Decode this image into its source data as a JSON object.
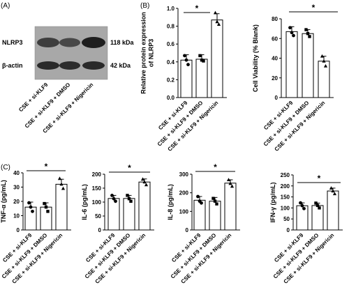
{
  "panel_labels": {
    "a": "(A)",
    "b": "(B)",
    "c": "(C)"
  },
  "blot": {
    "bands": [
      {
        "protein": "NLRP3",
        "size": "118 kDa"
      },
      {
        "protein": "β-actin",
        "size": "42 kDa"
      }
    ],
    "lanes": [
      "CSE + si-KLF9",
      "CSE + si-KLF9 + DMSO",
      "CSE + si-KLF9 + Nigericin"
    ]
  },
  "chart_data": [
    {
      "type": "bar",
      "panel": "B",
      "categories": [
        "CSE + si-KLF9",
        "CSE + si-KLF9 + DMSO",
        "CSE + si-KLF9 + Nigericin"
      ],
      "values": [
        0.42,
        0.43,
        0.87
      ],
      "errors": [
        0.06,
        0.05,
        0.07
      ],
      "points": [
        [
          0.47,
          0.37,
          0.42
        ],
        [
          0.47,
          0.41,
          0.42
        ],
        [
          0.95,
          0.82,
          0.85
        ]
      ],
      "markers": [
        "circle",
        "square",
        "triangle"
      ],
      "ylabel": "Relative protein expression\nof NLRP3",
      "ylim": [
        0,
        1.0
      ],
      "yticks": [
        "0.0",
        "0.2",
        "0.4",
        "0.6",
        "0.8",
        "1.0"
      ],
      "significance": "*"
    },
    {
      "type": "bar",
      "panel": "B",
      "categories": [
        "CSE + si-KLF9",
        "CSE + si-KLF9 + DMSO",
        "CSE + si-KLF9 + Nigericin"
      ],
      "values": [
        67,
        65,
        37
      ],
      "errors": [
        5,
        4,
        5
      ],
      "points": [
        [
          71,
          63,
          66
        ],
        [
          69,
          62,
          65
        ],
        [
          42,
          32,
          37
        ]
      ],
      "markers": [
        "circle",
        "square",
        "triangle"
      ],
      "ylabel": "Cell Viability (% Blank)",
      "ylim": [
        0,
        80
      ],
      "yticks": [
        "0",
        "20",
        "40",
        "60",
        "80"
      ],
      "significance": "*"
    },
    {
      "type": "bar",
      "panel": "C",
      "categories": [
        "CSE + si-KLF9",
        "CSE + si-KLF9 + DMSO",
        "CSE + si-KLF9 + Nigericin"
      ],
      "values": [
        16,
        16,
        32
      ],
      "errors": [
        3.5,
        3,
        3.5
      ],
      "points": [
        [
          19,
          13,
          16
        ],
        [
          18.5,
          13,
          16
        ],
        [
          36,
          29,
          32
        ]
      ],
      "markers": [
        "circle",
        "square",
        "triangle"
      ],
      "ylabel": "TNF-α (pg/mL)",
      "ylim": [
        0,
        40
      ],
      "yticks": [
        "0",
        "10",
        "20",
        "30",
        "40"
      ],
      "significance": "*"
    },
    {
      "type": "bar",
      "panel": "C",
      "categories": [
        "CSE + si-KLF9",
        "CSE + si-KLF9 + DMSO",
        "CSE + si-KLF9 + Nigericin"
      ],
      "values": [
        113,
        113,
        172
      ],
      "errors": [
        11,
        11,
        11
      ],
      "points": [
        [
          124,
          103,
          112
        ],
        [
          124,
          103,
          112
        ],
        [
          182,
          162,
          172
        ]
      ],
      "markers": [
        "circle",
        "square",
        "triangle"
      ],
      "ylabel": "IL-6 (pg/mL)",
      "ylim": [
        0,
        200
      ],
      "yticks": [
        "0",
        "50",
        "100",
        "150",
        "200"
      ],
      "significance": "*"
    },
    {
      "type": "bar",
      "panel": "C",
      "categories": [
        "CSE + si-KLF9",
        "CSE + si-KLF9 + DMSO",
        "CSE + si-KLF9 + Nigericin"
      ],
      "values": [
        160,
        155,
        252
      ],
      "errors": [
        20,
        20,
        18
      ],
      "points": [
        [
          180,
          145,
          155
        ],
        [
          170,
          140,
          155
        ],
        [
          270,
          235,
          250
        ]
      ],
      "markers": [
        "circle",
        "square",
        "triangle"
      ],
      "ylabel": "IL-8 (pg/mL)",
      "ylim": [
        0,
        300
      ],
      "yticks": [
        "0",
        "100",
        "200",
        "300"
      ],
      "significance": "*"
    },
    {
      "type": "bar",
      "panel": "C",
      "categories": [
        "CSE + si-KLF9",
        "CSE + si-KLF9 + DMSO",
        "CSE + si-KLF9 + Nigericin"
      ],
      "values": [
        110,
        111,
        177
      ],
      "errors": [
        13,
        11,
        13
      ],
      "points": [
        [
          123,
          97,
          110
        ],
        [
          122,
          100,
          111
        ],
        [
          190,
          164,
          177
        ]
      ],
      "markers": [
        "circle",
        "square",
        "triangle"
      ],
      "ylabel": "IFN-γ (pg/mL)",
      "ylim": [
        0,
        250
      ],
      "yticks": [
        "0",
        "50",
        "100",
        "150",
        "200",
        "250"
      ],
      "significance": "*"
    }
  ]
}
